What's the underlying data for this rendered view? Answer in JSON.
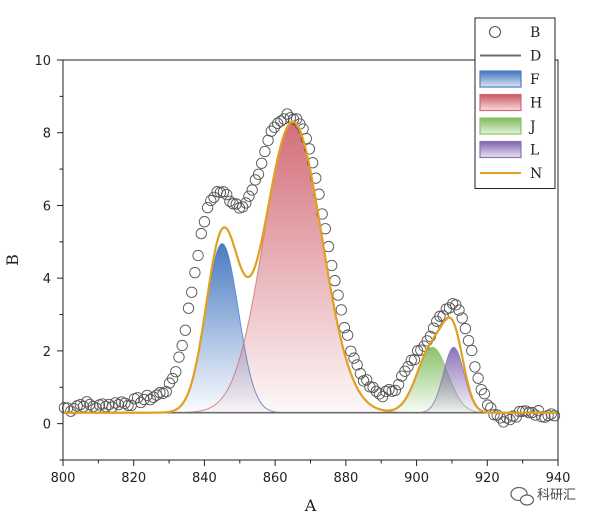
{
  "chart_data": {
    "type": "line",
    "title": "",
    "xlabel": "A",
    "ylabel": "B",
    "xlim": [
      800,
      940
    ],
    "ylim": [
      -1,
      10
    ],
    "xticks": [
      800,
      820,
      840,
      860,
      880,
      900,
      920,
      940
    ],
    "yticks": [
      0,
      2,
      4,
      6,
      8,
      10
    ],
    "baseline": 0.3,
    "grid": false,
    "legend_position": "top-right",
    "legend": [
      {
        "label": "B",
        "kind": "marker"
      },
      {
        "label": "D",
        "kind": "line"
      },
      {
        "label": "F",
        "kind": "fill"
      },
      {
        "label": "H",
        "kind": "fill"
      },
      {
        "label": "J",
        "kind": "fill"
      },
      {
        "label": "L",
        "kind": "fill"
      },
      {
        "label": "N",
        "kind": "line"
      }
    ],
    "series": [
      {
        "name": "D",
        "type": "line",
        "color": "#6b6b6b",
        "y": 0.3
      },
      {
        "name": "F",
        "type": "gaussian",
        "color": "#4a7ec6",
        "center": 845,
        "amplitude": 4.65,
        "sigma": 4.6
      },
      {
        "name": "H",
        "type": "gaussian",
        "color": "#d06a74",
        "center": 865,
        "amplitude": 8.0,
        "sigma": 8.2
      },
      {
        "name": "J",
        "type": "gaussian",
        "color": "#8bc36e",
        "center": 904.5,
        "amplitude": 1.8,
        "sigma": 4.3
      },
      {
        "name": "L",
        "type": "gaussian",
        "color": "#8a72b8",
        "center": 910.5,
        "amplitude": 1.8,
        "sigma": 2.9
      },
      {
        "name": "N",
        "type": "line",
        "color": "#e0a020",
        "description_of": "sum of peaks plus baseline"
      },
      {
        "name": "B",
        "type": "scatter",
        "marker": "circle",
        "x": [
          800,
          802,
          804,
          806,
          808,
          810,
          812,
          814,
          816,
          818,
          820,
          822,
          824,
          826,
          828,
          830,
          832,
          834,
          836,
          838,
          840,
          842,
          844,
          846,
          848,
          850,
          852,
          854,
          856,
          858,
          860,
          862,
          864,
          866,
          868,
          870,
          872,
          874,
          876,
          878,
          880,
          882,
          884,
          886,
          888,
          890,
          892,
          894,
          896,
          898,
          900,
          902,
          904,
          906,
          908,
          910,
          912,
          914,
          916,
          918,
          920,
          922,
          924,
          926,
          928,
          930,
          932,
          934,
          936,
          938,
          940
        ],
        "y": [
          0.45,
          0.4,
          0.5,
          0.55,
          0.5,
          0.45,
          0.55,
          0.5,
          0.6,
          0.55,
          0.6,
          0.65,
          0.7,
          0.75,
          0.85,
          1.0,
          1.5,
          2.3,
          3.4,
          4.6,
          5.6,
          6.2,
          6.4,
          6.3,
          6.1,
          6.0,
          6.1,
          6.5,
          7.1,
          7.8,
          8.2,
          8.4,
          8.5,
          8.35,
          8.0,
          7.4,
          6.5,
          5.5,
          4.4,
          3.4,
          2.5,
          1.9,
          1.4,
          1.1,
          0.9,
          0.8,
          0.85,
          1.0,
          1.3,
          1.6,
          1.9,
          2.2,
          2.5,
          2.8,
          3.1,
          3.35,
          3.2,
          2.6,
          1.8,
          1.1,
          0.6,
          0.3,
          0.15,
          0.1,
          0.2,
          0.3,
          0.35,
          0.3,
          0.25,
          0.3,
          0.3
        ]
      }
    ]
  },
  "watermark": {
    "text": "科研汇"
  }
}
